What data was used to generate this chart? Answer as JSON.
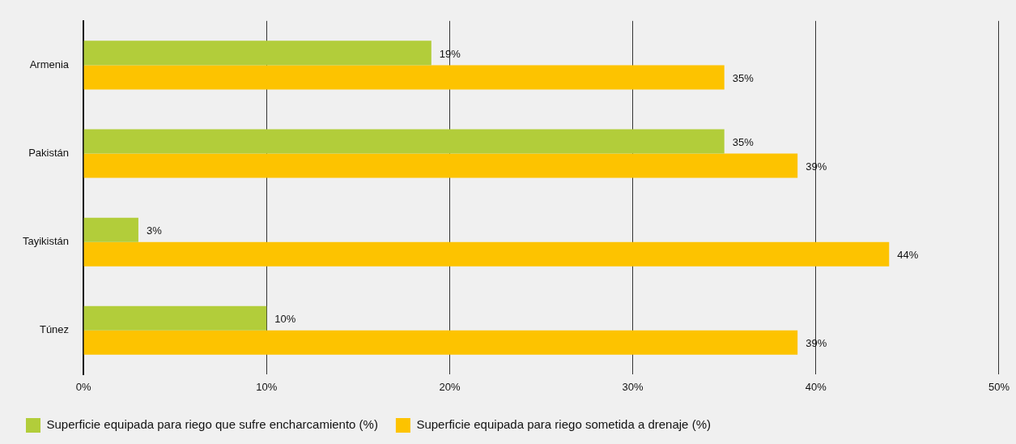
{
  "chart_data": {
    "type": "bar",
    "orientation": "horizontal",
    "categories": [
      "Armenia",
      "Pakistán",
      "Tayikistán",
      "Túnez"
    ],
    "series": [
      {
        "name": "Superficie equipada para riego que sufre encharcamiento (%)",
        "color": "#b2cd3a",
        "values": [
          19,
          35,
          3,
          10
        ],
        "value_labels": [
          "19%",
          "35%",
          "3%",
          "10%"
        ]
      },
      {
        "name": "Superficie equipada para riego sometida a drenaje (%)",
        "color": "#fdc300",
        "values": [
          35,
          39,
          44,
          39
        ],
        "value_labels": [
          "35%",
          "39%",
          "44%",
          "39%"
        ]
      }
    ],
    "xlim": [
      0,
      50
    ],
    "xticks": [
      {
        "value": 0,
        "label": "0%"
      },
      {
        "value": 10,
        "label": "10%"
      },
      {
        "value": 20,
        "label": "20%"
      },
      {
        "value": 30,
        "label": "30%"
      },
      {
        "value": 40,
        "label": "40%"
      },
      {
        "value": 50,
        "label": "50%"
      }
    ],
    "grid": "x",
    "legend": "bottom left"
  }
}
